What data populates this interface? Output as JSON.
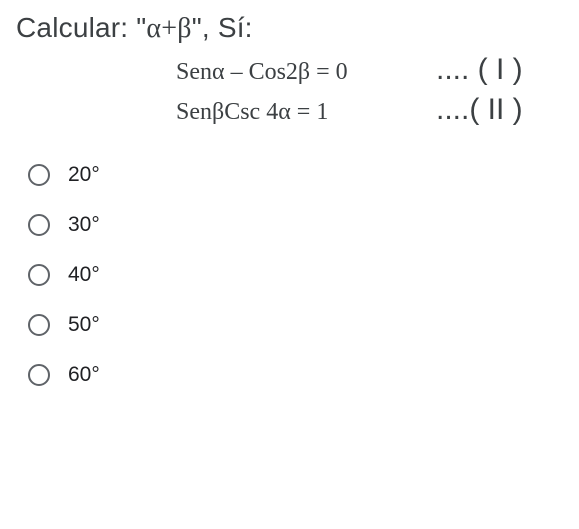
{
  "question": {
    "prefix": "Calcular: \"",
    "expr_alpha": "α",
    "expr_plus": "+",
    "expr_beta": "β",
    "suffix": "\", Sí:"
  },
  "equations": [
    {
      "lhs": "Senα – Cos2β = 0",
      "rhs": ".... ( I )"
    },
    {
      "lhs": "SenβCsc 4α = 1",
      "rhs": "....( II )"
    }
  ],
  "options": [
    {
      "label": "20°"
    },
    {
      "label": "30°"
    },
    {
      "label": "40°"
    },
    {
      "label": "50°"
    },
    {
      "label": "60°"
    }
  ],
  "colors": {
    "text": "#3c4043",
    "option_text": "#202124",
    "radio_border": "#5f6368",
    "background": "#ffffff"
  }
}
